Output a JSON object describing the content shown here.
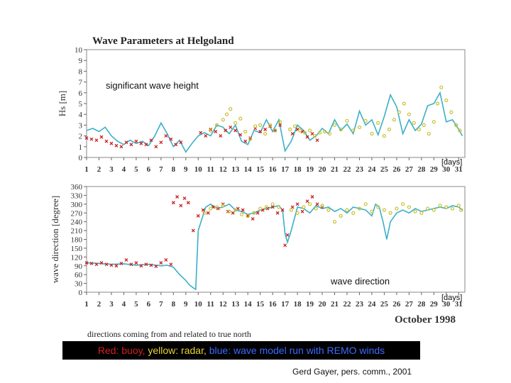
{
  "caption": {
    "red_text": "Red: buoy,",
    "yellow_text": "yellow: radar,",
    "blue_text": "blue: wave model run with REMO winds",
    "red_color": "#d22020",
    "yellow_color": "#e8d23a",
    "blue_color": "#3d6bff",
    "note": "directions coming from and related to true north",
    "credit": "Gerd Gayer, pers. comm., 2001"
  },
  "chart_data": [
    {
      "type": "line",
      "title": "Wave Parameters at Helgoland",
      "annotation": "significant wave height",
      "ylabel": "Hs [m]",
      "xlabel": "[days]",
      "ylim": [
        0,
        10
      ],
      "yticks": [
        0,
        1,
        2,
        3,
        4,
        5,
        6,
        7,
        8,
        9,
        10
      ],
      "xlim": [
        1,
        31.5
      ],
      "xticks": [
        "1",
        "2",
        "3",
        "4",
        "5",
        "6",
        "7",
        "8",
        "9",
        "10",
        "11",
        "12",
        "13",
        "14",
        "15",
        "16",
        "17",
        "18",
        "19",
        "20",
        "21",
        "22",
        "23",
        "24",
        "25",
        "26",
        "27",
        "28",
        "29",
        "30",
        "31"
      ],
      "series": [
        {
          "name": "wave model (blue)",
          "color": "#3ab0c8",
          "x": [
            1,
            1.5,
            2,
            2.5,
            3,
            3.5,
            4,
            4.5,
            5,
            5.5,
            6,
            6.5,
            7,
            7.5,
            8,
            8.5,
            9,
            9.5,
            10,
            10.5,
            11,
            11.5,
            12,
            12.5,
            13,
            13.5,
            14,
            14.5,
            15,
            15.5,
            16,
            16.5,
            17,
            17.5,
            18,
            18.5,
            19,
            19.5,
            20,
            20.5,
            21,
            21.5,
            22,
            22.5,
            23,
            23.5,
            24,
            24.5,
            25,
            25.5,
            26,
            26.5,
            27,
            27.5,
            28,
            28.5,
            29,
            29.5,
            30,
            30.5,
            31,
            31.3
          ],
          "y": [
            2.5,
            2.7,
            2.4,
            2.8,
            2.0,
            1.5,
            1.2,
            1.6,
            1.3,
            1.5,
            1.1,
            2.0,
            3.2,
            2.2,
            1.0,
            1.6,
            0.5,
            1.3,
            2.0,
            2.3,
            2.0,
            3.0,
            2.8,
            2.2,
            3.0,
            1.5,
            1.2,
            2.5,
            2.3,
            3.5,
            2.4,
            3.5,
            0.6,
            1.5,
            3.0,
            2.5,
            1.6,
            2.0,
            2.7,
            2.2,
            3.5,
            2.5,
            3.1,
            2.2,
            4.3,
            3.0,
            3.5,
            2.1,
            3.8,
            5.8,
            4.7,
            2.2,
            3.5,
            2.5,
            3.1,
            4.8,
            5.0,
            6.0,
            3.3,
            3.5,
            2.6,
            2.0
          ]
        },
        {
          "name": "buoy (red)",
          "color": "#cc2222",
          "x": [
            1,
            1.4,
            1.8,
            2.2,
            2.6,
            3,
            3.4,
            3.8,
            4.2,
            4.6,
            5,
            5.4,
            5.8,
            6.2,
            6.6,
            7,
            7.4,
            7.8,
            8.2,
            8.6,
            10.2,
            10.6,
            11,
            11.4,
            11.8,
            12.2,
            12.6,
            13,
            13.4,
            13.8,
            14.2,
            14.6,
            15,
            15.4,
            15.8,
            16.2,
            16.6,
            17.6,
            18,
            18.4,
            18.8,
            19.2,
            19.6
          ],
          "y": [
            1.8,
            1.7,
            1.6,
            1.9,
            1.5,
            1.3,
            1.1,
            1.0,
            1.4,
            1.2,
            1.5,
            1.3,
            1.2,
            1.6,
            1.0,
            1.4,
            2.0,
            1.7,
            1.2,
            1.4,
            2.3,
            2.0,
            2.6,
            2.4,
            2.0,
            2.5,
            2.8,
            2.5,
            2.1,
            1.5,
            1.8,
            2.7,
            2.4,
            2.6,
            2.9,
            2.5,
            3.0,
            2.2,
            2.6,
            2.4,
            1.9,
            2.2,
            1.6
          ]
        },
        {
          "name": "radar (yellow)",
          "color": "#c8c030",
          "x": [
            11,
            11.5,
            12,
            12.3,
            12.6,
            13,
            13.4,
            13.8,
            14.2,
            14.6,
            15,
            15.4,
            15.8,
            16.2,
            16.6,
            17.4,
            17.8,
            18.2,
            18.6,
            19,
            19.4,
            19.8,
            20.2,
            20.6,
            21,
            21.5,
            22,
            22.5,
            23,
            23.5,
            24,
            24.5,
            25,
            25.4,
            25.8,
            26.2,
            26.6,
            27,
            27.4,
            27.8,
            28.2,
            28.6,
            29,
            29.3,
            29.6,
            30,
            30.4,
            30.8,
            31.1
          ],
          "y": [
            2.5,
            3.0,
            3.5,
            4.0,
            4.5,
            3.2,
            3.6,
            2.4,
            1.7,
            2.9,
            3.0,
            2.2,
            3.0,
            2.5,
            3.3,
            2.6,
            2.9,
            2.5,
            2.3,
            2.5,
            2.0,
            2.3,
            2.4,
            2.2,
            3.0,
            2.6,
            3.4,
            2.5,
            2.8,
            3.4,
            2.2,
            3.2,
            2.0,
            2.6,
            3.5,
            4.2,
            5.0,
            4.0,
            3.2,
            2.6,
            3.0,
            2.2,
            3.3,
            5.0,
            6.5,
            5.3,
            4.2,
            3.0,
            2.5
          ]
        }
      ]
    },
    {
      "type": "line",
      "annotation": "wave direction",
      "ylabel": "wave direction [degree]",
      "xlabel": "[days]",
      "month_label": "October 1998",
      "ylim": [
        0,
        360
      ],
      "yticks": [
        0,
        30,
        60,
        90,
        120,
        150,
        180,
        210,
        240,
        270,
        300,
        330,
        360
      ],
      "xlim": [
        1,
        31.5
      ],
      "xticks": [
        "1",
        "2",
        "3",
        "4",
        "5",
        "6",
        "7",
        "8",
        "9",
        "10",
        "11",
        "12",
        "13",
        "14",
        "15",
        "16",
        "17",
        "18",
        "19",
        "20",
        "21",
        "22",
        "23",
        "24",
        "25",
        "26",
        "27",
        "28",
        "29",
        "30",
        "31"
      ],
      "series": [
        {
          "name": "wave model (blue)",
          "color": "#3ab0c8",
          "x": [
            1,
            2,
            3,
            4,
            5,
            6,
            7,
            7.5,
            8,
            8.5,
            9,
            9.3,
            9.6,
            9.8,
            10,
            10.3,
            10.6,
            11,
            11.5,
            12,
            12.5,
            13,
            13.5,
            14,
            14.5,
            15,
            15.5,
            16,
            16.5,
            16.8,
            17,
            17.2,
            17.5,
            18,
            18.5,
            19,
            19.5,
            20,
            20.5,
            21,
            21.5,
            22,
            22.5,
            23,
            23.5,
            24,
            24.3,
            24.6,
            24.9,
            25.2,
            25.5,
            26,
            26.5,
            27,
            27.5,
            28,
            28.5,
            29,
            29.5,
            30,
            30.5,
            31,
            31.3
          ],
          "y": [
            100,
            98,
            95,
            97,
            92,
            95,
            90,
            92,
            85,
            60,
            40,
            25,
            15,
            10,
            210,
            250,
            290,
            300,
            285,
            290,
            300,
            280,
            275,
            265,
            270,
            280,
            285,
            290,
            295,
            280,
            200,
            170,
            210,
            290,
            285,
            270,
            295,
            285,
            290,
            275,
            285,
            270,
            290,
            285,
            280,
            260,
            300,
            290,
            240,
            180,
            240,
            270,
            280,
            270,
            285,
            275,
            280,
            285,
            290,
            285,
            295,
            290,
            280
          ]
        },
        {
          "name": "buoy (red)",
          "color": "#cc2222",
          "x": [
            1,
            1.4,
            1.8,
            2.2,
            2.6,
            3,
            3.4,
            3.8,
            4.2,
            4.6,
            5,
            5.4,
            5.8,
            6.2,
            6.6,
            7,
            7.4,
            7.8,
            8,
            8.3,
            8.6,
            8.9,
            9.2,
            9.6,
            10,
            10.4,
            10.8,
            11.2,
            11.6,
            12,
            12.4,
            12.8,
            13.2,
            13.6,
            14,
            14.4,
            14.8,
            15.2,
            15.6,
            16,
            16.4,
            16.8,
            17,
            17.2,
            17.6,
            18,
            18.4,
            18.8,
            19.2,
            19.6,
            20
          ],
          "y": [
            100,
            98,
            95,
            100,
            95,
            92,
            90,
            98,
            110,
            95,
            100,
            90,
            95,
            92,
            88,
            100,
            110,
            95,
            305,
            325,
            295,
            320,
            305,
            210,
            260,
            280,
            270,
            290,
            285,
            300,
            275,
            270,
            285,
            280,
            260,
            250,
            270,
            280,
            285,
            290,
            270,
            280,
            160,
            195,
            290,
            300,
            275,
            310,
            325,
            300,
            290
          ]
        },
        {
          "name": "radar (yellow)",
          "color": "#c8c030",
          "x": [
            10.5,
            11,
            11.5,
            12,
            12.5,
            13,
            13.5,
            14,
            14.5,
            15,
            15.5,
            16,
            16.5,
            17.5,
            18,
            18.5,
            19,
            19.5,
            20,
            20.5,
            21,
            21.5,
            22,
            22.5,
            23,
            23.5,
            24,
            24.5,
            25,
            25.5,
            26,
            26.5,
            27,
            27.5,
            28,
            28.5,
            29,
            29.5,
            30,
            30.5,
            31,
            31.2
          ],
          "y": [
            270,
            285,
            290,
            295,
            275,
            280,
            265,
            260,
            270,
            285,
            290,
            300,
            290,
            280,
            270,
            290,
            300,
            285,
            295,
            280,
            240,
            260,
            280,
            270,
            285,
            300,
            275,
            290,
            280,
            270,
            285,
            300,
            290,
            275,
            270,
            285,
            280,
            295,
            290,
            285,
            295,
            280
          ]
        }
      ]
    }
  ]
}
